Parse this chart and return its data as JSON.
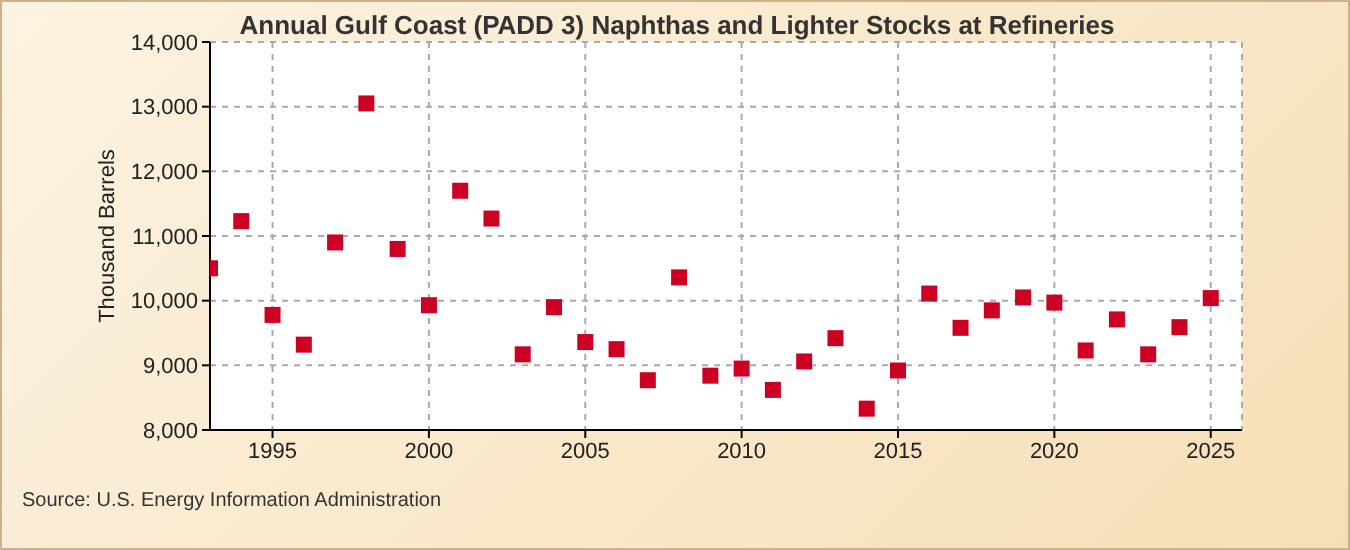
{
  "chart_data": {
    "type": "scatter",
    "title": "Annual Gulf Coast (PADD 3) Naphthas and Lighter Stocks at Refineries",
    "ylabel": "Thousand Barrels",
    "annotations": [
      "Source: U.S. Energy Information Administration"
    ],
    "x": [
      1993,
      1994,
      1995,
      1996,
      1997,
      1998,
      1999,
      2000,
      2001,
      2002,
      2003,
      2004,
      2005,
      2006,
      2007,
      2008,
      2009,
      2010,
      2011,
      2012,
      2013,
      2014,
      2015,
      2016,
      2017,
      2018,
      2019,
      2020,
      2021,
      2022,
      2023,
      2024,
      2025
    ],
    "series": [
      {
        "color": "#cc0022",
        "values": [
          10500,
          11230,
          9780,
          9320,
          10900,
          13050,
          10800,
          9930,
          11700,
          11270,
          9170,
          9900,
          9360,
          9250,
          8770,
          10360,
          8840,
          8950,
          8620,
          9060,
          9420,
          8330,
          8920,
          10110,
          9580,
          9850,
          10050,
          9970,
          9230,
          9710,
          9170,
          9590,
          10040
        ]
      }
    ],
    "xlim": [
      1993,
      2026
    ],
    "xticks": [
      1995,
      2000,
      2005,
      2010,
      2015,
      2020,
      2025
    ],
    "ylim": [
      8000,
      14000
    ],
    "yticks": [
      {
        "value": 8000,
        "label": "8,000"
      },
      {
        "value": 9000,
        "label": "9,000"
      },
      {
        "value": 10000,
        "label": "10,000"
      },
      {
        "value": 11000,
        "label": "11,000"
      },
      {
        "value": 12000,
        "label": "12,000"
      },
      {
        "value": 13000,
        "label": "13,000"
      },
      {
        "value": 14000,
        "label": "14,000"
      }
    ],
    "grid": true,
    "marker": "square",
    "legend": false
  }
}
